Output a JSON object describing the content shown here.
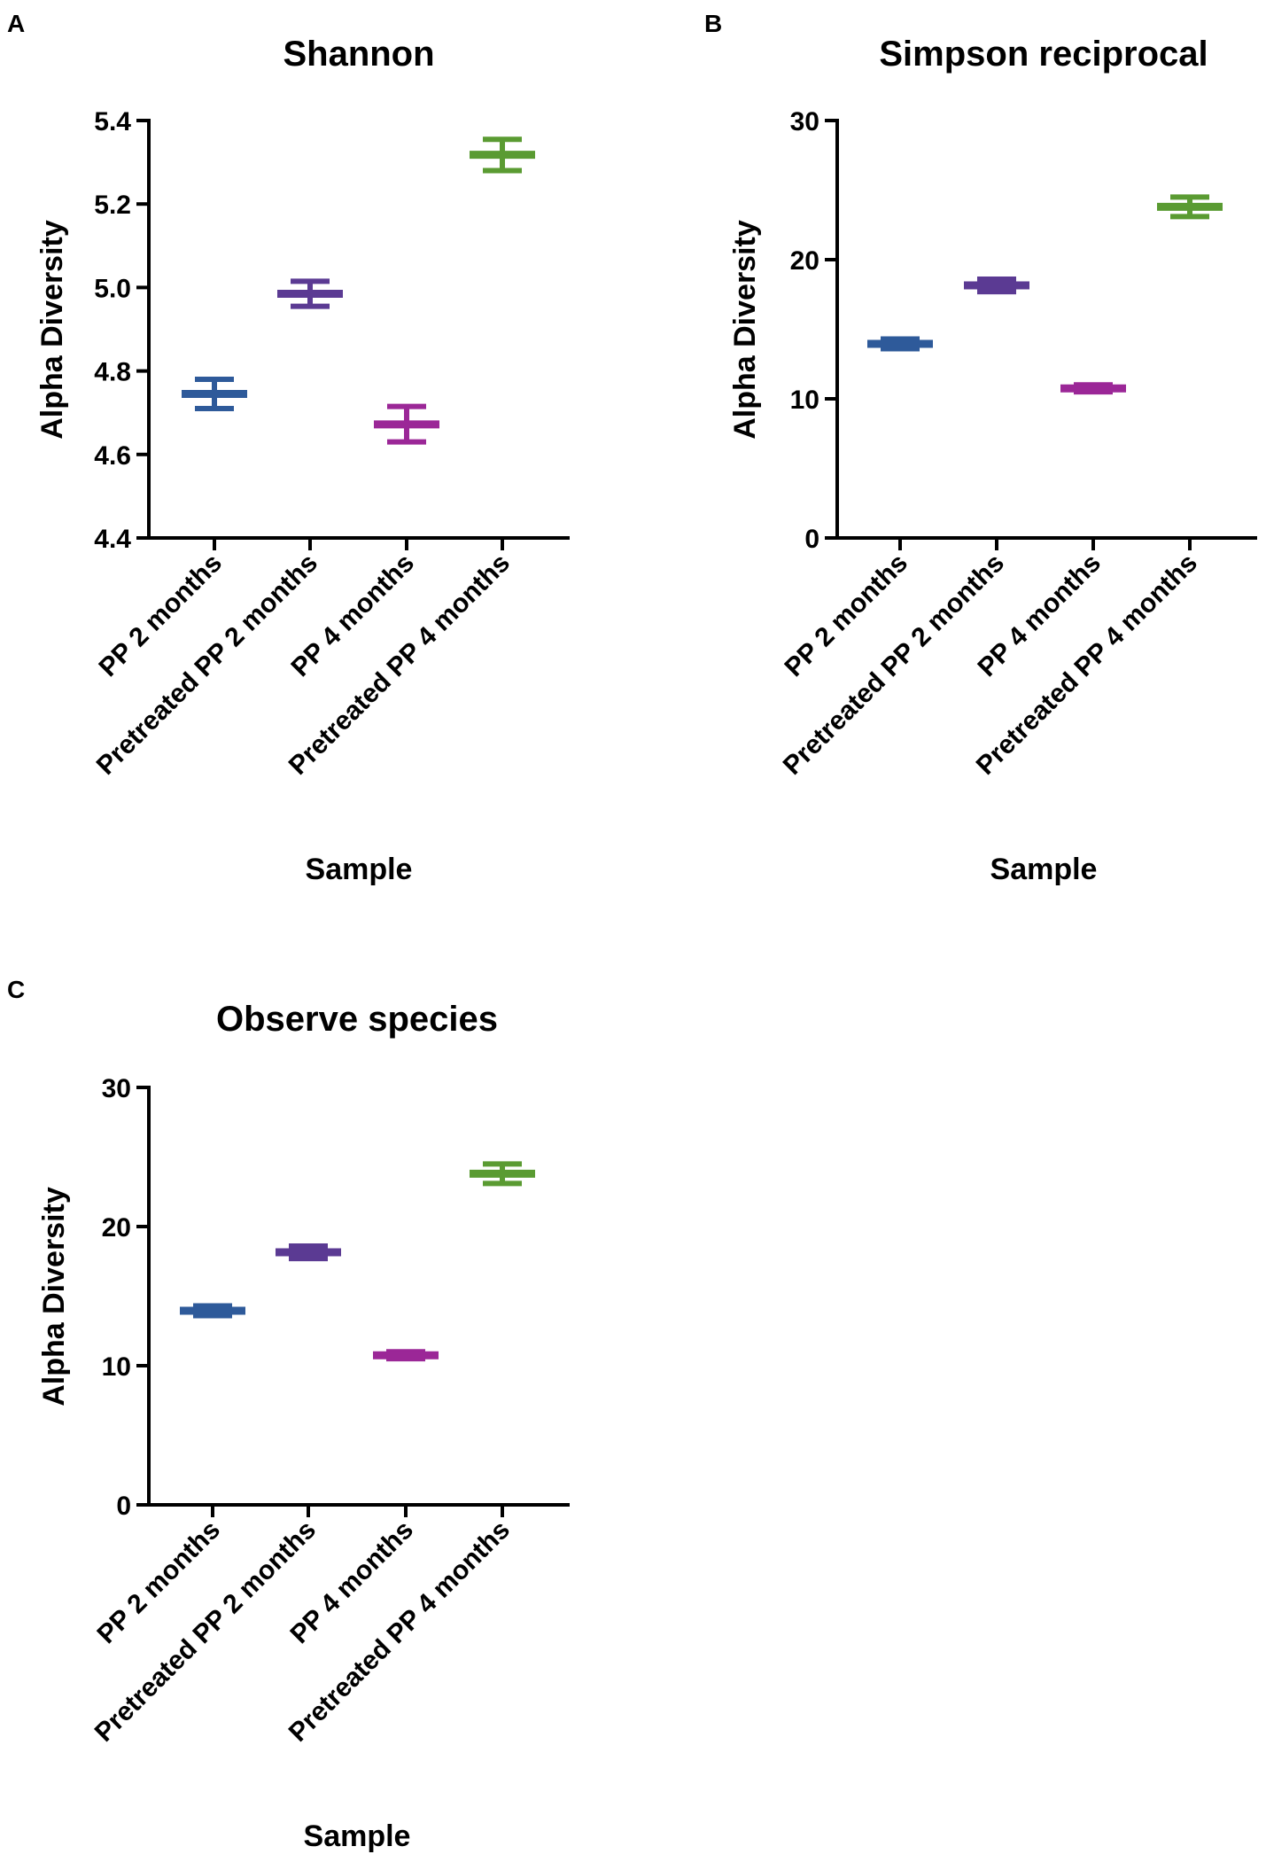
{
  "chart_data": [
    {
      "type": "scatter",
      "panel": "A",
      "title": "Shannon",
      "xlabel": "Sample",
      "ylabel": "Alpha Diversity",
      "ylim": [
        4.4,
        5.4
      ],
      "yticks": [
        "4.4",
        "4.6",
        "4.8",
        "5.0",
        "5.2",
        "5.4"
      ],
      "categories": [
        "PP 2 months",
        "Pretreated PP 2 months",
        "PP 4 months",
        "Pretreated PP 4 months"
      ],
      "values": [
        4.745,
        4.985,
        4.672,
        5.318
      ],
      "error_low": [
        4.71,
        4.955,
        4.63,
        5.28
      ],
      "error_high": [
        4.78,
        5.015,
        4.715,
        5.355
      ],
      "colors": [
        "#2e5a9a",
        "#5b3a93",
        "#9b2797",
        "#5a9b32"
      ]
    },
    {
      "type": "scatter",
      "panel": "B",
      "title": "Simpson reciprocal",
      "xlabel": "Sample",
      "ylabel": "Alpha Diversity",
      "ylim": [
        0,
        30
      ],
      "yticks": [
        "0",
        "10",
        "20",
        "30"
      ],
      "categories": [
        "PP 2 months",
        "Pretreated PP 2 months",
        "PP 4 months",
        "Pretreated PP 4 months"
      ],
      "values": [
        13.95,
        18.15,
        10.75,
        23.8
      ],
      "error_low": [
        13.6,
        17.7,
        10.5,
        23.1
      ],
      "error_high": [
        14.3,
        18.6,
        11.0,
        24.5
      ],
      "colors": [
        "#2e5a9a",
        "#5b3a93",
        "#9b2797",
        "#5a9b32"
      ]
    },
    {
      "type": "scatter",
      "panel": "C",
      "title": "Observe species",
      "xlabel": "Sample",
      "ylabel": "Alpha Diversity",
      "ylim": [
        0,
        30
      ],
      "yticks": [
        "0",
        "10",
        "20",
        "30"
      ],
      "categories": [
        "PP 2 months",
        "Pretreated PP 2 months",
        "PP 4 months",
        "Pretreated PP 4 months"
      ],
      "values": [
        13.95,
        18.15,
        10.75,
        23.8
      ],
      "error_low": [
        13.6,
        17.7,
        10.5,
        23.1
      ],
      "error_high": [
        14.3,
        18.6,
        11.0,
        24.5
      ],
      "colors": [
        "#2e5a9a",
        "#5b3a93",
        "#9b2797",
        "#5a9b32"
      ]
    }
  ]
}
